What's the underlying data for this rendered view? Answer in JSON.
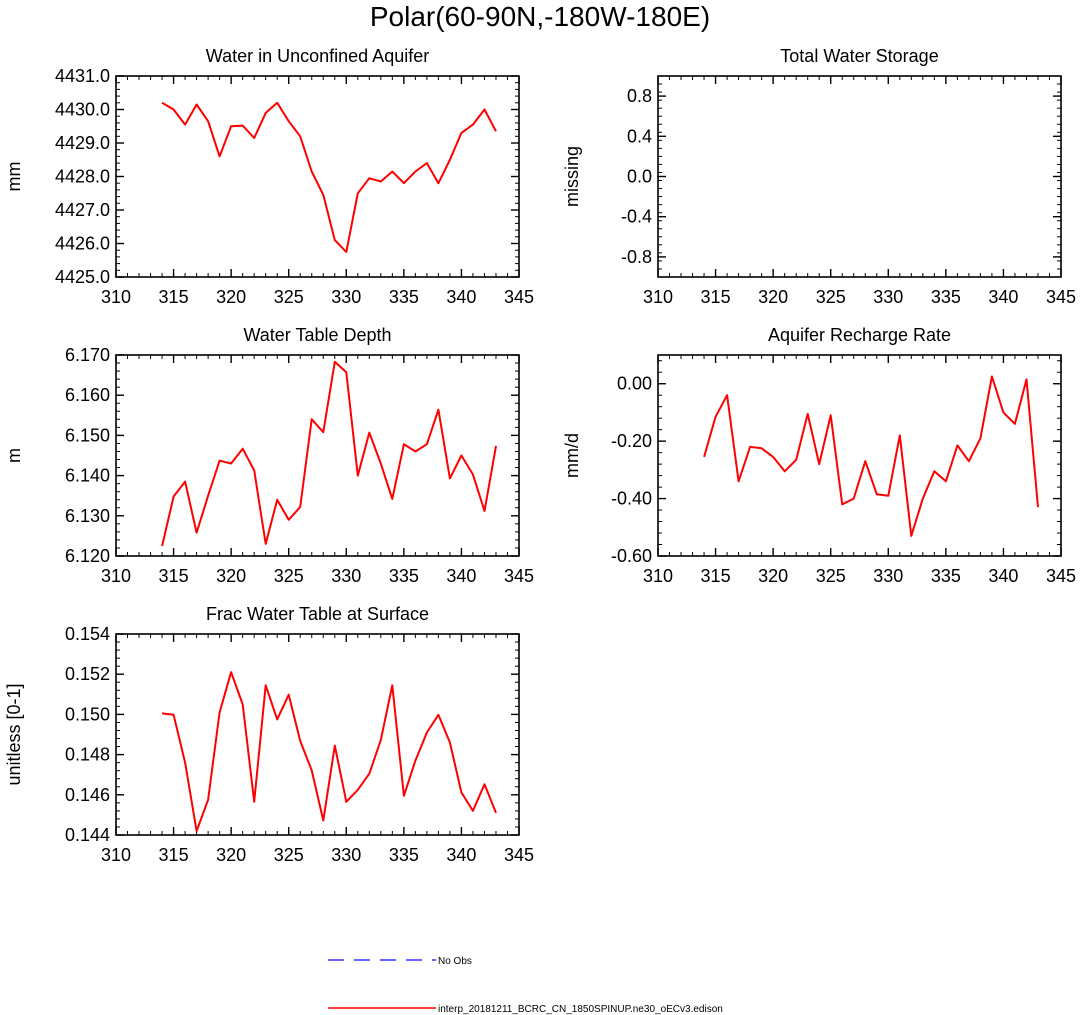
{
  "figure_title": "Polar(60-90N,-180W-180E)",
  "legend": [
    {
      "label": "No Obs",
      "color": "#3333ff",
      "style": "dashed"
    },
    {
      "label": "interp_20181211_BCRC_CN_1850SPINUP.ne30_oECv3.edison",
      "color": "#ff0000",
      "style": "solid"
    }
  ],
  "chart_data": [
    {
      "type": "line",
      "title": "Water in Unconfined Aquifer",
      "ylabel": "mm",
      "xlabel": "",
      "xlim": [
        310,
        345
      ],
      "ylim": [
        4425.0,
        4431.0
      ],
      "xticks": [
        310,
        315,
        320,
        325,
        330,
        335,
        340,
        345
      ],
      "yticks": [
        4425.0,
        4426.0,
        4427.0,
        4428.0,
        4429.0,
        4430.0,
        4431.0
      ],
      "ytick_labels": [
        "4425.0",
        "4426.0",
        "4427.0",
        "4428.0",
        "4429.0",
        "4430.0",
        "4431.0"
      ],
      "x": [
        314,
        315,
        316,
        317,
        318,
        319,
        320,
        321,
        322,
        323,
        324,
        325,
        326,
        327,
        328,
        329,
        330,
        331,
        332,
        333,
        334,
        335,
        336,
        337,
        338,
        339,
        340,
        341,
        342,
        343
      ],
      "series": [
        {
          "name": "interp_20181211_BCRC_CN_1850SPINUP.ne30_oECv3.edison",
          "color": "#ff0000",
          "values": [
            4430.2,
            4430.0,
            4429.55,
            4430.15,
            4429.65,
            4428.6,
            4429.5,
            4429.52,
            4429.15,
            4429.9,
            4430.2,
            4429.65,
            4429.2,
            4428.15,
            4427.45,
            4426.1,
            4425.75,
            4427.5,
            4427.95,
            4427.85,
            4428.15,
            4427.8,
            4428.15,
            4428.4,
            4427.8,
            4428.5,
            4429.3,
            4429.55,
            4430.0,
            4429.35
          ]
        }
      ]
    },
    {
      "type": "line",
      "title": "Total Water Storage",
      "ylabel": "missing",
      "xlabel": "",
      "xlim": [
        310,
        345
      ],
      "ylim": [
        -1.0,
        1.0
      ],
      "xticks": [
        310,
        315,
        320,
        325,
        330,
        335,
        340,
        345
      ],
      "yticks": [
        -0.8,
        -0.4,
        0.0,
        0.4,
        0.8
      ],
      "ytick_labels": [
        "-0.8",
        "-0.4",
        "0.0",
        "0.4",
        "0.8"
      ],
      "x": [],
      "series": []
    },
    {
      "type": "line",
      "title": "Water Table Depth",
      "ylabel": "m",
      "xlabel": "",
      "xlim": [
        310,
        345
      ],
      "ylim": [
        6.12,
        6.17
      ],
      "xticks": [
        310,
        315,
        320,
        325,
        330,
        335,
        340,
        345
      ],
      "yticks": [
        6.12,
        6.13,
        6.14,
        6.15,
        6.16,
        6.17
      ],
      "ytick_labels": [
        "6.120",
        "6.130",
        "6.140",
        "6.150",
        "6.160",
        "6.170"
      ],
      "x": [
        314,
        315,
        316,
        317,
        318,
        319,
        320,
        321,
        322,
        323,
        324,
        325,
        326,
        327,
        328,
        329,
        330,
        331,
        332,
        333,
        334,
        335,
        336,
        337,
        338,
        339,
        340,
        341,
        342,
        343
      ],
      "series": [
        {
          "name": "interp_20181211_BCRC_CN_1850SPINUP.ne30_oECv3.edison",
          "color": "#ff0000",
          "values": [
            6.1225,
            6.1348,
            6.1385,
            6.1258,
            6.135,
            6.1437,
            6.143,
            6.1467,
            6.1413,
            6.123,
            6.134,
            6.129,
            6.1322,
            6.154,
            6.1508,
            6.1683,
            6.1657,
            6.14,
            6.1507,
            6.143,
            6.1342,
            6.1478,
            6.146,
            6.1478,
            6.1564,
            6.1393,
            6.145,
            6.1403,
            6.1312,
            6.1474
          ]
        }
      ]
    },
    {
      "type": "line",
      "title": "Aquifer Recharge Rate",
      "ylabel": "mm/d",
      "xlabel": "",
      "xlim": [
        310,
        345
      ],
      "ylim": [
        -0.6,
        0.1
      ],
      "xticks": [
        310,
        315,
        320,
        325,
        330,
        335,
        340,
        345
      ],
      "yticks": [
        -0.6,
        -0.4,
        -0.2,
        0.0
      ],
      "ytick_labels": [
        "-0.60",
        "-0.40",
        "-0.20",
        "0.00"
      ],
      "x": [
        314,
        315,
        316,
        317,
        318,
        319,
        320,
        321,
        322,
        323,
        324,
        325,
        326,
        327,
        328,
        329,
        330,
        331,
        332,
        333,
        334,
        335,
        336,
        337,
        338,
        339,
        340,
        341,
        342,
        343
      ],
      "series": [
        {
          "name": "interp_20181211_BCRC_CN_1850SPINUP.ne30_oECv3.edison",
          "color": "#ff0000",
          "values": [
            -0.255,
            -0.115,
            -0.04,
            -0.34,
            -0.22,
            -0.225,
            -0.255,
            -0.305,
            -0.265,
            -0.105,
            -0.28,
            -0.11,
            -0.42,
            -0.4,
            -0.27,
            -0.385,
            -0.39,
            -0.18,
            -0.53,
            -0.4,
            -0.305,
            -0.34,
            -0.215,
            -0.27,
            -0.19,
            0.025,
            -0.1,
            -0.14,
            0.015,
            -0.43
          ]
        }
      ]
    },
    {
      "type": "line",
      "title": "Frac Water Table at Surface",
      "ylabel": "unitless [0-1]",
      "xlabel": "",
      "xlim": [
        310,
        345
      ],
      "ylim": [
        0.144,
        0.154
      ],
      "xticks": [
        310,
        315,
        320,
        325,
        330,
        335,
        340,
        345
      ],
      "yticks": [
        0.144,
        0.146,
        0.148,
        0.15,
        0.152,
        0.154
      ],
      "ytick_labels": [
        "0.144",
        "0.146",
        "0.148",
        "0.150",
        "0.152",
        "0.154"
      ],
      "x": [
        314,
        315,
        316,
        317,
        318,
        319,
        320,
        321,
        322,
        323,
        324,
        325,
        326,
        327,
        328,
        329,
        330,
        331,
        332,
        333,
        334,
        335,
        336,
        337,
        338,
        339,
        340,
        341,
        342,
        343
      ],
      "series": [
        {
          "name": "interp_20181211_BCRC_CN_1850SPINUP.ne30_oECv3.edison",
          "color": "#ff0000",
          "values": [
            0.15005,
            0.14998,
            0.1476,
            0.1442,
            0.14575,
            0.1501,
            0.1521,
            0.1505,
            0.14565,
            0.15145,
            0.14975,
            0.15098,
            0.14868,
            0.14722,
            0.14472,
            0.14845,
            0.14565,
            0.14625,
            0.14705,
            0.14872,
            0.15145,
            0.14595,
            0.1477,
            0.1491,
            0.14998,
            0.1486,
            0.14612,
            0.1452,
            0.14652,
            0.1451
          ]
        }
      ]
    }
  ]
}
